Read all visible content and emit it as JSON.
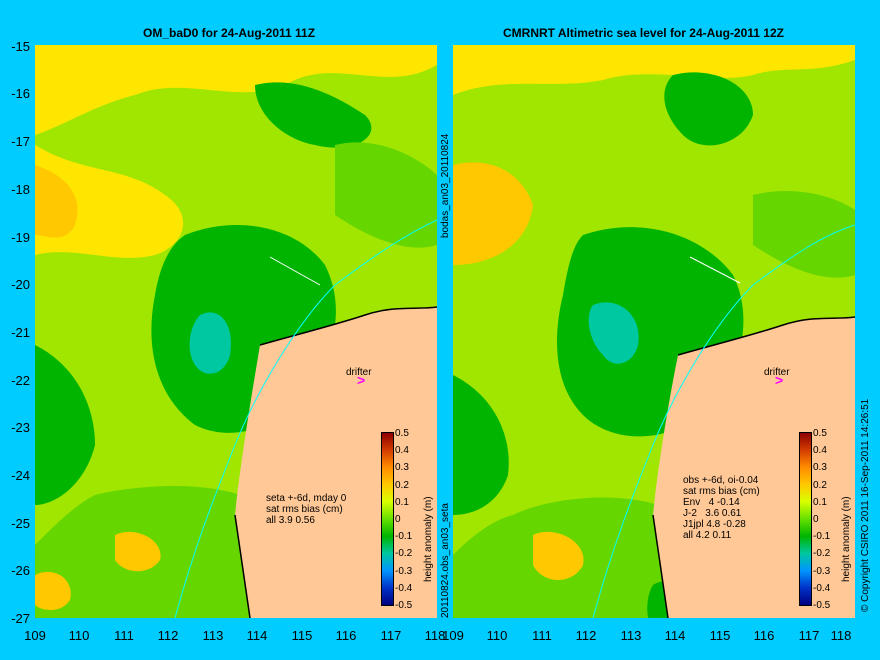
{
  "left_panel": {
    "title": "OM_baD0 for 24-Aug-2011 11Z",
    "stats": "seta +-6d, mday 0\nsat rms bias (cm)\nall 3.9 0.56",
    "drifter_label": "drifter"
  },
  "right_panel": {
    "title": "CMRNRT Altimetric sea level  for 24-Aug-2011 12Z",
    "stats": "obs +-6d, oi-0.04\nsat rms bias (cm)\nEnv   4 -0.14\nJ-2   3.6 0.61\nJ1jpl 4.8 -0.28\nall 4.2 0.11",
    "drifter_label": "drifter"
  },
  "middle_vertical_top": "bodas_an03_20110824",
  "middle_vertical_bottom": "20110824.obs_an03_seta",
  "right_vertical": "© Copyright CSIRO 2011    16-Sep-2011 14:26:51",
  "y_ticks": [
    "-15",
    "-16",
    "-17",
    "-18",
    "-19",
    "-20",
    "-21",
    "-22",
    "-23",
    "-24",
    "-25",
    "-26",
    "-27"
  ],
  "x_ticks_left": [
    "109",
    "110",
    "111",
    "112",
    "113",
    "114",
    "115",
    "116",
    "117",
    "118"
  ],
  "x_ticks_right": [
    "109",
    "110",
    "111",
    "112",
    "113",
    "114",
    "115",
    "116",
    "117",
    "118"
  ],
  "colorbar": {
    "label": "height anomaly (m)",
    "ticks": [
      "0.5",
      "0.4",
      "0.3",
      "0.2",
      "0.1",
      "0",
      "-0.1",
      "-0.2",
      "-0.3",
      "-0.4",
      "-0.5"
    ]
  },
  "colors": {
    "background": "#00ccff",
    "land": "#ffc896",
    "sea_low": "#00b400",
    "sea_mid": "#a0e600",
    "sea_high": "#ffc800",
    "drifter_arrow": "#ff00ff",
    "coast_current": "#00ffff"
  },
  "icons": [
    "drifter-arrow-icon"
  ]
}
